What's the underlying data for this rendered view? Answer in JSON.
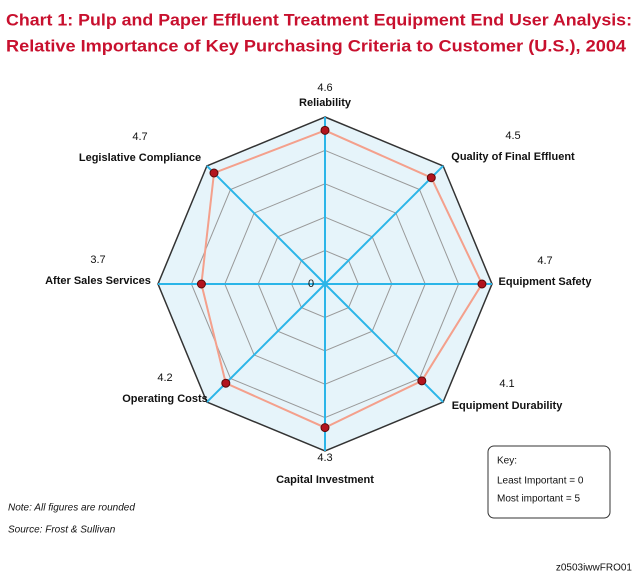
{
  "chart_data": {
    "type": "radar",
    "title": [
      "Chart 1: Pulp and Paper Effluent Treatment Equipment End User Analysis:",
      "Relative Importance of Key Purchasing Criteria to Customer (U.S.), 2004"
    ],
    "categories": [
      "Reliability",
      "Quality of Final Effluent",
      "Equipment Safety",
      "Equipment Durability",
      "Capital Investment",
      "Operating Costs",
      "After Sales Services",
      "Legislative Compliance"
    ],
    "values": [
      4.6,
      4.5,
      4.7,
      4.1,
      4.3,
      4.2,
      3.7,
      4.7
    ],
    "color": "#f4a08c",
    "marker_color": "#b3141e",
    "rlim": [
      0,
      5
    ],
    "rticks": [
      0
    ],
    "rgrid": [
      1,
      2,
      3,
      4,
      5
    ],
    "key": {
      "title": "Key:",
      "lines": [
        "Least Important = 0",
        "Most important = 5"
      ]
    },
    "note": "Note: All figures are rounded",
    "source": "Source: Frost & Sullivan",
    "code": "z0503iwwFRO01"
  }
}
